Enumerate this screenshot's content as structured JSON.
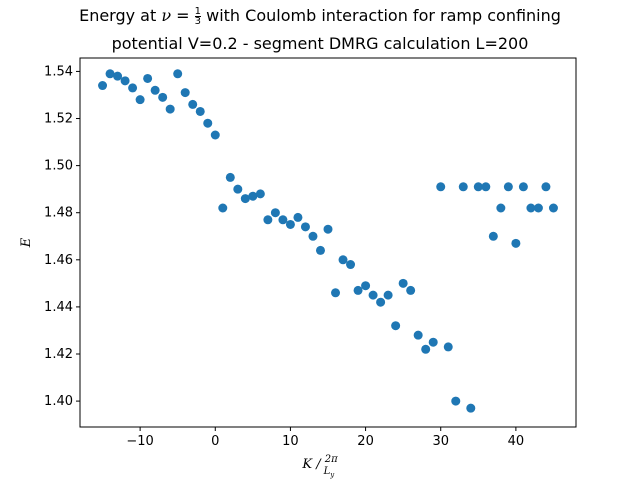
{
  "chart_data": {
    "type": "scatter",
    "title": "Energy at ν = 1/3 with Coulomb interaction for ramp confining",
    "subtitle": "potential V=0.2 - segment DMRG calculation L=200",
    "xlabel": "K / 2π/Ly",
    "ylabel": "E",
    "xlim": [
      -18,
      48
    ],
    "ylim": [
      1.389,
      1.5457
    ],
    "xticks": [
      -10,
      0,
      10,
      20,
      30,
      40
    ],
    "yticks": [
      1.4,
      1.42,
      1.44,
      1.46,
      1.48,
      1.5,
      1.52,
      1.54
    ],
    "grid": false,
    "color": "#1f77b4",
    "x": [
      -15,
      -14,
      -13,
      -12,
      -11,
      -10,
      -9,
      -8,
      -7,
      -6,
      -5,
      -4,
      -3,
      -2,
      -1,
      0,
      1,
      2,
      3,
      4,
      5,
      6,
      7,
      8,
      9,
      10,
      11,
      12,
      13,
      14,
      15,
      16,
      17,
      18,
      19,
      20,
      21,
      22,
      23,
      24,
      25,
      26,
      27,
      28,
      29,
      30,
      31,
      32,
      33,
      34,
      35,
      36,
      37,
      38,
      39,
      40,
      41,
      42,
      43,
      44,
      45
    ],
    "y": [
      1.534,
      1.539,
      1.538,
      1.536,
      1.533,
      1.528,
      1.537,
      1.532,
      1.529,
      1.524,
      1.539,
      1.531,
      1.526,
      1.523,
      1.518,
      1.513,
      1.482,
      1.495,
      1.49,
      1.486,
      1.487,
      1.488,
      1.477,
      1.48,
      1.477,
      1.475,
      1.478,
      1.474,
      1.47,
      1.464,
      1.473,
      1.446,
      1.46,
      1.458,
      1.447,
      1.449,
      1.445,
      1.442,
      1.445,
      1.432,
      1.45,
      1.447,
      1.428,
      1.422,
      1.425,
      1.491,
      1.423,
      1.4,
      1.491,
      1.397,
      1.491,
      1.491,
      1.47,
      1.482,
      1.491,
      1.467,
      1.491,
      1.482,
      1.482,
      1.491,
      1.482
    ]
  }
}
